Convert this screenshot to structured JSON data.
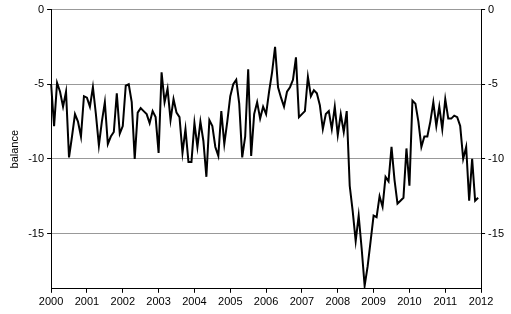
{
  "chart_data": {
    "type": "line",
    "y_label": "balance",
    "categories": [
      "2000",
      null,
      null,
      null,
      null,
      null,
      null,
      null,
      null,
      null,
      null,
      null,
      "2001",
      null,
      null,
      null,
      null,
      null,
      null,
      null,
      null,
      null,
      null,
      null,
      "2002",
      null,
      null,
      null,
      null,
      null,
      null,
      null,
      null,
      null,
      null,
      null,
      "2003",
      null,
      null,
      null,
      null,
      null,
      null,
      null,
      null,
      null,
      null,
      null,
      "2004",
      null,
      null,
      null,
      null,
      null,
      null,
      null,
      null,
      null,
      null,
      null,
      "2005",
      null,
      null,
      null,
      null,
      null,
      null,
      null,
      null,
      null,
      null,
      null,
      "2006",
      null,
      null,
      null,
      null,
      null,
      null,
      null,
      null,
      null,
      null,
      null,
      "2007",
      null,
      null,
      null,
      null,
      null,
      null,
      null,
      null,
      null,
      null,
      null,
      "2008",
      null,
      null,
      null,
      null,
      null,
      null,
      null,
      null,
      null,
      null,
      null,
      "2009",
      null,
      null,
      null,
      null,
      null,
      null,
      null,
      null,
      null,
      null,
      null,
      "2010",
      null,
      null,
      null,
      null,
      null,
      null,
      null,
      null,
      null,
      null,
      null,
      "2011",
      null,
      null,
      null,
      null,
      null,
      null,
      null,
      null,
      null,
      null,
      null,
      "2012"
    ],
    "values": [
      -5,
      -7.8,
      -4.9,
      -5.5,
      -6.5,
      -5.5,
      -9.9,
      -8.5,
      -7.0,
      -7.5,
      -8.5,
      -5.8,
      -5.9,
      -6.5,
      -5.2,
      -7.0,
      -9.1,
      -7.5,
      -6.2,
      -9.0,
      -8.5,
      -8.2,
      -5.6,
      -8.3,
      -7.8,
      -5.1,
      -5.0,
      -6.2,
      -10.0,
      -6.9,
      -6.6,
      -6.8,
      -7.0,
      -7.6,
      -6.8,
      -7.2,
      -9.6,
      -4.2,
      -6.2,
      -5.3,
      -7.4,
      -6.0,
      -6.9,
      -7.2,
      -9.6,
      -8.0,
      -10.2,
      -10.2,
      -7.6,
      -9.2,
      -7.5,
      -8.8,
      -11.2,
      -7.4,
      -7.8,
      -9.2,
      -9.8,
      -6.8,
      -9.0,
      -7.5,
      -5.8,
      -5.0,
      -4.7,
      -6.3,
      -9.9,
      -8.5,
      -4.0,
      -9.8,
      -7.0,
      -6.2,
      -7.3,
      -6.5,
      -7.0,
      -5.5,
      -4.2,
      -2.5,
      -5.2,
      -5.9,
      -6.5,
      -5.5,
      -5.2,
      -4.7,
      -3.2,
      -7.2,
      -7.0,
      -6.8,
      -4.5,
      -5.8,
      -5.4,
      -5.6,
      -6.4,
      -8.0,
      -7.0,
      -6.8,
      -8.0,
      -6.5,
      -8.4,
      -7.0,
      -8.2,
      -6.8,
      -11.8,
      -13.5,
      -15.5,
      -13.8,
      -16.0,
      -18.5,
      -17.2,
      -15.5,
      -13.8,
      -13.9,
      -12.5,
      -13.2,
      -11.2,
      -11.5,
      -9.2,
      -11.4,
      -13.0,
      -12.8,
      -12.6,
      -9.3,
      -11.8,
      -6.1,
      -6.3,
      -7.5,
      -9.2,
      -8.5,
      -8.5,
      -7.5,
      -6.2,
      -7.8,
      -6.5,
      -8.0,
      -6.0,
      -7.3,
      -7.3,
      -7.1,
      -7.2,
      -7.8,
      -10.0,
      -9.2,
      -12.8,
      -10.0,
      -12.8,
      -12.6,
      null
    ],
    "color": "#000000",
    "ylim": [
      -18.7,
      0
    ],
    "yticks": [
      -15,
      -10,
      -5,
      0
    ],
    "y2lim": [
      -18.7,
      0
    ],
    "y2ticks": [
      -15,
      -10,
      -5,
      0
    ],
    "grid": true
  }
}
